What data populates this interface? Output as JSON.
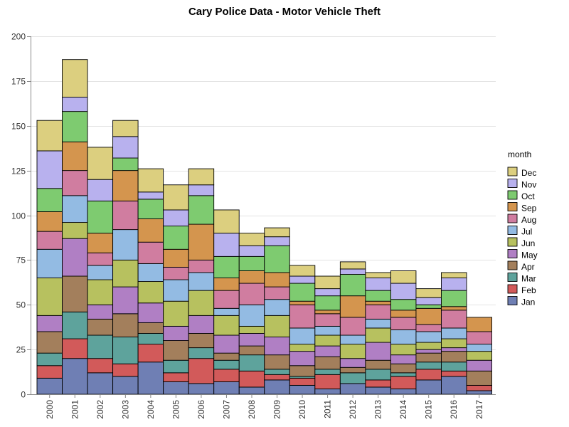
{
  "chart_data": {
    "type": "bar",
    "stacked": true,
    "title": "Cary Police Data - Motor Vehicle Theft",
    "xlabel": "",
    "ylabel": "",
    "ylim": [
      0,
      200
    ],
    "yticks": [
      0,
      25,
      50,
      75,
      100,
      125,
      150,
      175,
      200
    ],
    "grid": true,
    "legend": {
      "title": "month",
      "position": "right"
    },
    "categories": [
      "2000",
      "2001",
      "2002",
      "2003",
      "2004",
      "2005",
      "2006",
      "2007",
      "2008",
      "2009",
      "2010",
      "2011",
      "2012",
      "2013",
      "2014",
      "2015",
      "2016",
      "2017"
    ],
    "series": [
      {
        "name": "Jan",
        "color": "#6f7fb4",
        "values": [
          9,
          20,
          12,
          10,
          18,
          7,
          6,
          7,
          4,
          8,
          5,
          3,
          6,
          4,
          3,
          8,
          10,
          2
        ]
      },
      {
        "name": "Feb",
        "color": "#d25a5a",
        "values": [
          7,
          11,
          8,
          7,
          10,
          5,
          14,
          7,
          9,
          3,
          4,
          8,
          0,
          4,
          7,
          6,
          3,
          3
        ]
      },
      {
        "name": "Mar",
        "color": "#5ea39c",
        "values": [
          7,
          15,
          13,
          15,
          6,
          7,
          6,
          5,
          9,
          3,
          1,
          3,
          6,
          6,
          2,
          4,
          5,
          0
        ]
      },
      {
        "name": "Apr",
        "color": "#a37f5c",
        "values": [
          12,
          20,
          9,
          13,
          6,
          11,
          8,
          4,
          5,
          8,
          6,
          7,
          3,
          5,
          5,
          5,
          6,
          8
        ]
      },
      {
        "name": "May",
        "color": "#b07fc4",
        "values": [
          9,
          21,
          8,
          15,
          11,
          8,
          10,
          10,
          7,
          10,
          8,
          6,
          5,
          10,
          5,
          2,
          2,
          6
        ]
      },
      {
        "name": "Jun",
        "color": "#b7c15f",
        "values": [
          21,
          9,
          14,
          15,
          12,
          14,
          14,
          11,
          4,
          12,
          4,
          6,
          8,
          8,
          6,
          4,
          5,
          5
        ]
      },
      {
        "name": "Jul",
        "color": "#93bbe3",
        "values": [
          16,
          15,
          8,
          17,
          10,
          12,
          10,
          4,
          12,
          9,
          9,
          5,
          5,
          5,
          8,
          6,
          6,
          4
        ]
      },
      {
        "name": "Aug",
        "color": "#d07da0",
        "values": [
          10,
          14,
          7,
          16,
          12,
          7,
          7,
          10,
          12,
          7,
          13,
          7,
          10,
          8,
          7,
          4,
          10,
          7
        ]
      },
      {
        "name": "Sep",
        "color": "#d4954e",
        "values": [
          11,
          16,
          11,
          17,
          13,
          10,
          20,
          7,
          7,
          8,
          2,
          2,
          12,
          2,
          4,
          9,
          2,
          8
        ]
      },
      {
        "name": "Oct",
        "color": "#7ecb70",
        "values": [
          13,
          17,
          18,
          7,
          11,
          13,
          16,
          12,
          8,
          15,
          10,
          8,
          12,
          6,
          6,
          2,
          9,
          0
        ]
      },
      {
        "name": "Nov",
        "color": "#b8b1ee",
        "values": [
          21,
          8,
          12,
          12,
          4,
          9,
          6,
          13,
          6,
          5,
          4,
          4,
          3,
          7,
          9,
          4,
          7,
          0
        ]
      },
      {
        "name": "Dec",
        "color": "#dccf7f",
        "values": [
          17,
          21,
          18,
          9,
          13,
          14,
          9,
          13,
          7,
          5,
          6,
          7,
          4,
          3,
          7,
          5,
          3,
          0
        ]
      }
    ]
  }
}
